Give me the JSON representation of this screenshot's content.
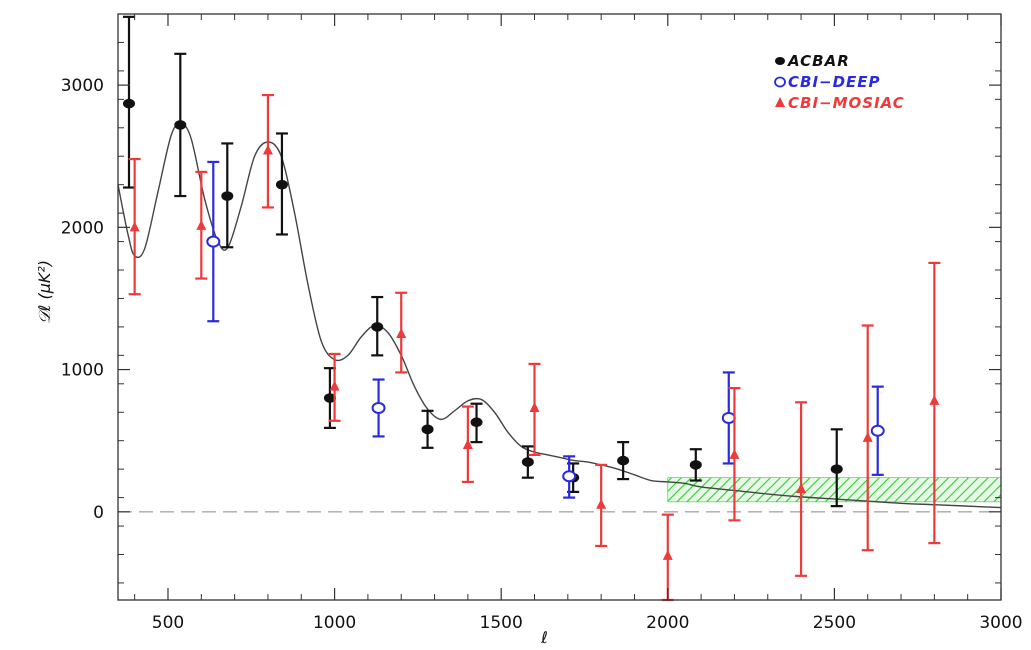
{
  "chart_data": {
    "type": "scatter",
    "xlabel": "ℓ",
    "ylabel": "𝒟ℓ (μK²)",
    "xlim": [
      350,
      3000
    ],
    "ylim": [
      -620,
      3500
    ],
    "x_ticks": [
      500,
      1000,
      1500,
      2000,
      2500,
      3000
    ],
    "y_ticks": [
      0,
      1000,
      2000,
      3000
    ],
    "x_tick_labels": [
      "500",
      "1000",
      "1500",
      "2000",
      "2500",
      "3000"
    ],
    "y_tick_labels": [
      "0",
      "1000",
      "2000",
      "3000"
    ],
    "grid": false,
    "legend_position": "top-right",
    "legend": [
      "ACBAR",
      "CBI−DEEP",
      "CBI−MOSIAC"
    ],
    "series": [
      {
        "name": "ACBAR",
        "marker": "filled-circle",
        "color": "#111111",
        "points": [
          {
            "x": 383,
            "y": 2870,
            "lo": 2280,
            "hi": 3480
          },
          {
            "x": 537,
            "y": 2720,
            "lo": 2220,
            "hi": 3220
          },
          {
            "x": 678,
            "y": 2220,
            "lo": 1860,
            "hi": 2590
          },
          {
            "x": 842,
            "y": 2300,
            "lo": 1950,
            "hi": 2660
          },
          {
            "x": 986,
            "y": 800,
            "lo": 590,
            "hi": 1010
          },
          {
            "x": 1128,
            "y": 1300,
            "lo": 1100,
            "hi": 1510
          },
          {
            "x": 1279,
            "y": 580,
            "lo": 450,
            "hi": 710
          },
          {
            "x": 1426,
            "y": 630,
            "lo": 490,
            "hi": 760
          },
          {
            "x": 1580,
            "y": 350,
            "lo": 240,
            "hi": 460
          },
          {
            "x": 1716,
            "y": 240,
            "lo": 140,
            "hi": 340
          },
          {
            "x": 1866,
            "y": 360,
            "lo": 230,
            "hi": 490
          },
          {
            "x": 2084,
            "y": 330,
            "lo": 220,
            "hi": 440
          },
          {
            "x": 2507,
            "y": 300,
            "lo": 40,
            "hi": 580
          }
        ]
      },
      {
        "name": "CBI−DEEP",
        "marker": "open-circle",
        "color": "#2a2ae0",
        "points": [
          {
            "x": 636,
            "y": 1900,
            "lo": 1340,
            "hi": 2460
          },
          {
            "x": 1132,
            "y": 730,
            "lo": 530,
            "hi": 930
          },
          {
            "x": 1704,
            "y": 250,
            "lo": 100,
            "hi": 390
          },
          {
            "x": 2183,
            "y": 660,
            "lo": 340,
            "hi": 980
          },
          {
            "x": 2630,
            "y": 570,
            "lo": 260,
            "hi": 880
          }
        ]
      },
      {
        "name": "CBI−MOSIAC",
        "marker": "filled-triangle",
        "color": "#ee3a3a",
        "points": [
          {
            "x": 400,
            "y": 2000,
            "lo": 1530,
            "hi": 2480
          },
          {
            "x": 600,
            "y": 2010,
            "lo": 1640,
            "hi": 2390
          },
          {
            "x": 800,
            "y": 2540,
            "lo": 2140,
            "hi": 2930
          },
          {
            "x": 1000,
            "y": 880,
            "lo": 640,
            "hi": 1110
          },
          {
            "x": 1200,
            "y": 1250,
            "lo": 980,
            "hi": 1540
          },
          {
            "x": 1400,
            "y": 470,
            "lo": 210,
            "hi": 740
          },
          {
            "x": 1600,
            "y": 730,
            "lo": 400,
            "hi": 1040
          },
          {
            "x": 1800,
            "y": 50,
            "lo": -240,
            "hi": 330
          },
          {
            "x": 2000,
            "y": -310,
            "lo": -620,
            "hi": -20
          },
          {
            "x": 2200,
            "y": 400,
            "lo": -60,
            "hi": 870
          },
          {
            "x": 2400,
            "y": 160,
            "lo": -450,
            "hi": 770
          },
          {
            "x": 2600,
            "y": 520,
            "lo": -270,
            "hi": 1310
          },
          {
            "x": 2800,
            "y": 780,
            "lo": -220,
            "hi": 1750
          }
        ]
      }
    ],
    "model_curve": {
      "color": "#444444",
      "points": [
        [
          350,
          2300
        ],
        [
          380,
          1950
        ],
        [
          400,
          1800
        ],
        [
          430,
          1850
        ],
        [
          470,
          2250
        ],
        [
          510,
          2650
        ],
        [
          540,
          2730
        ],
        [
          570,
          2620
        ],
        [
          610,
          2200
        ],
        [
          650,
          1900
        ],
        [
          680,
          1860
        ],
        [
          720,
          2150
        ],
        [
          760,
          2500
        ],
        [
          800,
          2600
        ],
        [
          840,
          2500
        ],
        [
          880,
          2100
        ],
        [
          920,
          1600
        ],
        [
          960,
          1200
        ],
        [
          1000,
          1070
        ],
        [
          1040,
          1100
        ],
        [
          1080,
          1230
        ],
        [
          1120,
          1310
        ],
        [
          1160,
          1260
        ],
        [
          1200,
          1100
        ],
        [
          1240,
          880
        ],
        [
          1280,
          720
        ],
        [
          1320,
          650
        ],
        [
          1360,
          710
        ],
        [
          1400,
          780
        ],
        [
          1440,
          790
        ],
        [
          1480,
          700
        ],
        [
          1520,
          560
        ],
        [
          1560,
          460
        ],
        [
          1600,
          420
        ],
        [
          1640,
          400
        ],
        [
          1680,
          380
        ],
        [
          1720,
          360
        ],
        [
          1760,
          350
        ],
        [
          1800,
          330
        ],
        [
          1850,
          300
        ],
        [
          1900,
          260
        ],
        [
          1950,
          220
        ],
        [
          2000,
          210
        ],
        [
          2050,
          200
        ],
        [
          2100,
          175
        ],
        [
          2200,
          150
        ],
        [
          2300,
          125
        ],
        [
          2400,
          105
        ],
        [
          2500,
          90
        ],
        [
          2600,
          75
        ],
        [
          2700,
          60
        ],
        [
          2800,
          50
        ],
        [
          2900,
          40
        ],
        [
          3000,
          30
        ]
      ]
    },
    "band": {
      "color": "#33cc33",
      "x_range": [
        2000,
        3000
      ],
      "y_range": [
        70,
        240
      ]
    },
    "zero_line": {
      "y": 0,
      "style": "dashed"
    }
  }
}
